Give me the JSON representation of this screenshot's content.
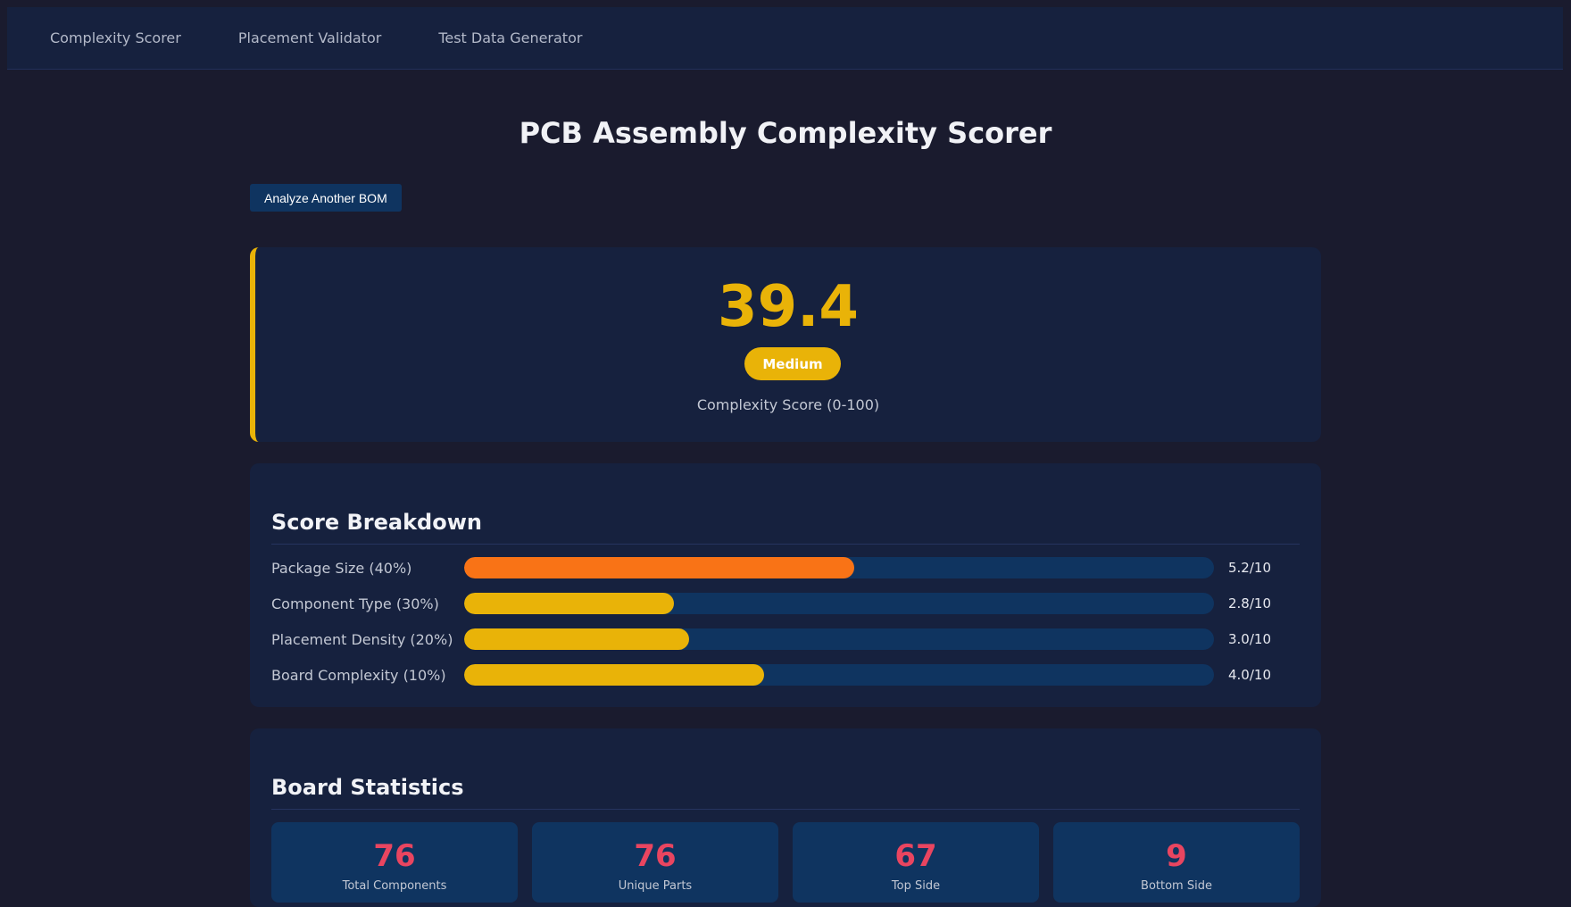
{
  "nav": {
    "tabs": [
      {
        "label": "Complexity Scorer"
      },
      {
        "label": "Placement Validator"
      },
      {
        "label": "Test Data Generator"
      }
    ]
  },
  "page": {
    "title": "PCB Assembly Complexity Scorer",
    "analyze_button": "Analyze Another BOM"
  },
  "score": {
    "value": "39.4",
    "level": "Medium",
    "label": "Complexity Score (0-100)",
    "accent_color": "#e9b308"
  },
  "breakdown": {
    "title": "Score Breakdown",
    "rows": [
      {
        "label": "Package Size (40%)",
        "value": "5.2/10",
        "score": 5.2,
        "max": 10,
        "color": "#f97316"
      },
      {
        "label": "Component Type (30%)",
        "value": "2.8/10",
        "score": 2.8,
        "max": 10,
        "color": "#e9b308"
      },
      {
        "label": "Placement Density (20%)",
        "value": "3.0/10",
        "score": 3.0,
        "max": 10,
        "color": "#e9b308"
      },
      {
        "label": "Board Complexity (10%)",
        "value": "4.0/10",
        "score": 4.0,
        "max": 10,
        "color": "#e9b308"
      }
    ]
  },
  "stats": {
    "title": "Board Statistics",
    "items": [
      {
        "value": "76",
        "label": "Total Components"
      },
      {
        "value": "76",
        "label": "Unique Parts"
      },
      {
        "value": "67",
        "label": "Top Side"
      },
      {
        "value": "9",
        "label": "Bottom Side"
      }
    ]
  }
}
